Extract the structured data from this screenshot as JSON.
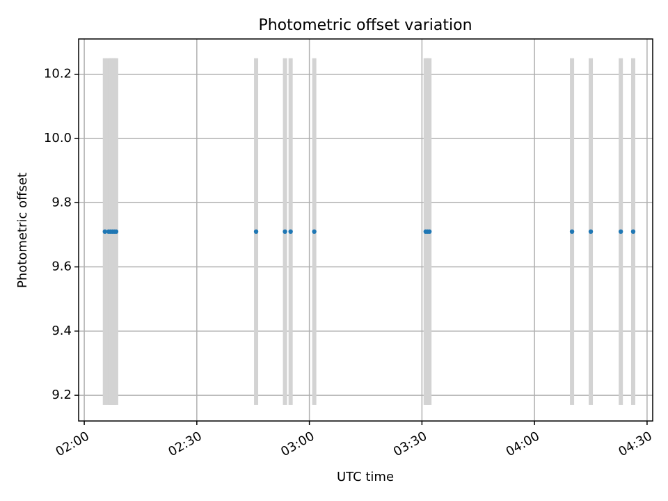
{
  "chart_data": {
    "type": "scatter",
    "title": "Photometric offset variation",
    "xlabel": "UTC time",
    "ylabel": "Photometric offset",
    "x_ticks": [
      "02:00",
      "02:30",
      "03:00",
      "03:30",
      "04:00",
      "04:30"
    ],
    "y_ticks": [
      "9.2",
      "9.4",
      "9.6",
      "9.8",
      "10.0",
      "10.2"
    ],
    "xlim": [
      "01:58.5",
      "04:31.5"
    ],
    "ylim": [
      9.12,
      10.31
    ],
    "grid": true,
    "points_color": "#1f77b4",
    "band_color": "#d3d3d3",
    "band_range": [
      9.17,
      10.25
    ],
    "x": [
      "02:05.5",
      "02:06.5",
      "02:07.0",
      "02:07.5",
      "02:08.0",
      "02:08.5",
      "02:45.8",
      "02:53.5",
      "02:55.0",
      "03:01.3",
      "03:31.0",
      "03:31.5",
      "03:32.0",
      "04:10.0",
      "04:15.0",
      "04:23.0",
      "04:26.3"
    ],
    "values": [
      9.71,
      9.71,
      9.71,
      9.71,
      9.71,
      9.71,
      9.71,
      9.71,
      9.71,
      9.71,
      9.71,
      9.71,
      9.71,
      9.71,
      9.71,
      9.71,
      9.71
    ]
  }
}
